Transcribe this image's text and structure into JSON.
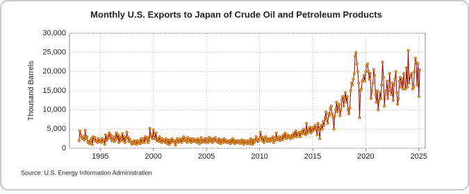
{
  "chart_data": {
    "type": "line",
    "title": "Monthly U.S. Exports to Japan of Crude Oil and Petroleum Products",
    "y_label": "Thousand Barrels",
    "source": "Source: U.S. Energy Information Administration",
    "xlim": [
      1992.1,
      2025.6
    ],
    "xticks": [
      1995,
      2000,
      2005,
      2010,
      2015,
      2020,
      2025
    ],
    "ylim": [
      0,
      30000
    ],
    "yticks": [
      0,
      {
        "value": 5000,
        "label": "5,000"
      },
      {
        "value": 10000,
        "label": "10,000"
      },
      {
        "value": 15000,
        "label": "15,000"
      },
      {
        "value": 20000,
        "label": "20,000"
      },
      {
        "value": 25000,
        "label": "25,000"
      },
      {
        "value": 30000,
        "label": "30,000"
      }
    ],
    "grid": true,
    "series": [
      {
        "color": "#990000",
        "marker_color": "#d9a520",
        "x": [
          1993,
          1993.08,
          1993.17,
          1993.25,
          1993.33,
          1993.42,
          1993.5,
          1993.58,
          1993.67,
          1993.75,
          1993.83,
          1993.92,
          1994,
          1994.08,
          1994.17,
          1994.25,
          1994.33,
          1994.42,
          1994.5,
          1994.58,
          1994.67,
          1994.75,
          1994.83,
          1994.92,
          1995,
          1995.08,
          1995.17,
          1995.25,
          1995.33,
          1995.42,
          1995.5,
          1995.58,
          1995.67,
          1995.75,
          1995.83,
          1995.92,
          1996,
          1996.08,
          1996.17,
          1996.25,
          1996.33,
          1996.42,
          1996.5,
          1996.58,
          1996.67,
          1996.75,
          1996.83,
          1996.92,
          1997,
          1997.08,
          1997.17,
          1997.25,
          1997.33,
          1997.42,
          1997.5,
          1997.58,
          1997.67,
          1997.75,
          1997.83,
          1997.92,
          1998,
          1998.08,
          1998.17,
          1998.25,
          1998.33,
          1998.42,
          1998.5,
          1998.58,
          1998.67,
          1998.75,
          1998.83,
          1998.92,
          1999,
          1999.08,
          1999.17,
          1999.25,
          1999.33,
          1999.42,
          1999.5,
          1999.58,
          1999.67,
          1999.75,
          1999.83,
          1999.92,
          2000,
          2000.08,
          2000.17,
          2000.25,
          2000.33,
          2000.42,
          2000.5,
          2000.58,
          2000.67,
          2000.75,
          2000.83,
          2000.92,
          2001,
          2001.08,
          2001.17,
          2001.25,
          2001.33,
          2001.42,
          2001.5,
          2001.58,
          2001.67,
          2001.75,
          2001.83,
          2001.92,
          2002,
          2002.08,
          2002.17,
          2002.25,
          2002.33,
          2002.42,
          2002.5,
          2002.58,
          2002.67,
          2002.75,
          2002.83,
          2002.92,
          2003,
          2003.08,
          2003.17,
          2003.25,
          2003.33,
          2003.42,
          2003.5,
          2003.58,
          2003.67,
          2003.75,
          2003.83,
          2003.92,
          2004,
          2004.08,
          2004.17,
          2004.25,
          2004.33,
          2004.42,
          2004.5,
          2004.58,
          2004.67,
          2004.75,
          2004.83,
          2004.92,
          2005,
          2005.08,
          2005.17,
          2005.25,
          2005.33,
          2005.42,
          2005.5,
          2005.58,
          2005.67,
          2005.75,
          2005.83,
          2005.92,
          2006,
          2006.08,
          2006.17,
          2006.25,
          2006.33,
          2006.42,
          2006.5,
          2006.58,
          2006.67,
          2006.75,
          2006.83,
          2006.92,
          2007,
          2007.08,
          2007.17,
          2007.25,
          2007.33,
          2007.42,
          2007.5,
          2007.58,
          2007.67,
          2007.75,
          2007.83,
          2007.92,
          2008,
          2008.08,
          2008.17,
          2008.25,
          2008.33,
          2008.42,
          2008.5,
          2008.58,
          2008.67,
          2008.75,
          2008.83,
          2008.92,
          2009,
          2009.08,
          2009.17,
          2009.25,
          2009.33,
          2009.42,
          2009.5,
          2009.58,
          2009.67,
          2009.75,
          2009.83,
          2009.92,
          2010,
          2010.08,
          2010.17,
          2010.25,
          2010.33,
          2010.42,
          2010.5,
          2010.58,
          2010.67,
          2010.75,
          2010.83,
          2010.92,
          2011,
          2011.08,
          2011.17,
          2011.25,
          2011.33,
          2011.42,
          2011.5,
          2011.58,
          2011.67,
          2011.75,
          2011.83,
          2011.92,
          2012,
          2012.08,
          2012.17,
          2012.25,
          2012.33,
          2012.42,
          2012.5,
          2012.58,
          2012.67,
          2012.75,
          2012.83,
          2012.92,
          2013,
          2013.08,
          2013.17,
          2013.25,
          2013.33,
          2013.42,
          2013.5,
          2013.58,
          2013.67,
          2013.75,
          2013.83,
          2013.92,
          2014,
          2014.08,
          2014.17,
          2014.25,
          2014.33,
          2014.42,
          2014.5,
          2014.58,
          2014.67,
          2014.75,
          2014.83,
          2014.92,
          2015,
          2015.08,
          2015.17,
          2015.25,
          2015.33,
          2015.42,
          2015.5,
          2015.58,
          2015.67,
          2015.75,
          2015.83,
          2015.92,
          2016,
          2016.08,
          2016.17,
          2016.25,
          2016.33,
          2016.42,
          2016.5,
          2016.58,
          2016.67,
          2016.75,
          2016.83,
          2016.92,
          2017,
          2017.08,
          2017.17,
          2017.25,
          2017.33,
          2017.42,
          2017.5,
          2017.58,
          2017.67,
          2017.75,
          2017.83,
          2017.92,
          2018,
          2018.08,
          2018.17,
          2018.25,
          2018.33,
          2018.42,
          2018.5,
          2018.58,
          2018.67,
          2018.75,
          2018.83,
          2018.92,
          2019,
          2019.08,
          2019.17,
          2019.25,
          2019.33,
          2019.42,
          2019.5,
          2019.58,
          2019.67,
          2019.75,
          2019.83,
          2019.92,
          2020,
          2020.08,
          2020.17,
          2020.25,
          2020.33,
          2020.42,
          2020.5,
          2020.58,
          2020.67,
          2020.75,
          2020.83,
          2020.92,
          2021,
          2021.08,
          2021.17,
          2021.25,
          2021.33,
          2021.42,
          2021.5,
          2021.58,
          2021.67,
          2021.75,
          2021.83,
          2021.92,
          2022,
          2022.08,
          2022.17,
          2022.25,
          2022.33,
          2022.42,
          2022.5,
          2022.58,
          2022.67,
          2022.75,
          2022.83,
          2022.92,
          2023,
          2023.08,
          2023.17,
          2023.25,
          2023.33,
          2023.42,
          2023.5,
          2023.58,
          2023.67,
          2023.75,
          2023.83,
          2023.92,
          2024,
          2024.08,
          2024.17,
          2024.25,
          2024.33,
          2024.42,
          2024.5,
          2024.58,
          2024.67,
          2024.75,
          2024.83,
          2024.92,
          2025,
          2025.08
        ],
        "values": [
          2000,
          4500,
          3500,
          2800,
          2500,
          3000,
          2200,
          4600,
          2500,
          3000,
          1500,
          1800,
          1200,
          2000,
          2500,
          1000,
          3000,
          2200,
          2800,
          1800,
          2000,
          1500,
          2500,
          1800,
          2000,
          1500,
          2500,
          1800,
          2200,
          1000,
          3500,
          2000,
          3000,
          2500,
          4000,
          2800,
          3500,
          2000,
          2500,
          3000,
          1800,
          2200,
          4000,
          2500,
          3500,
          1500,
          3000,
          2000,
          2500,
          3800,
          2000,
          3000,
          1500,
          2500,
          4200,
          3000,
          1800,
          2500,
          2000,
          1500,
          1000,
          1500,
          2000,
          1200,
          1800,
          1000,
          2000,
          1500,
          1800,
          1200,
          2500,
          1500,
          1800,
          2500,
          1500,
          3000,
          2200,
          2800,
          1500,
          2000,
          5200,
          3000,
          3500,
          2500,
          4800,
          3500,
          2500,
          4000,
          2000,
          2500,
          1800,
          3000,
          2200,
          1500,
          2500,
          2000,
          2000,
          1500,
          2500,
          1800,
          1200,
          2200,
          1000,
          2000,
          1500,
          2500,
          1800,
          2000,
          1500,
          800,
          2000,
          2500,
          1500,
          2000,
          1800,
          2500,
          1500,
          2200,
          3000,
          2000,
          2500,
          2000,
          1500,
          2800,
          2200,
          1800,
          2500,
          1500,
          2000,
          2500,
          1800,
          2200,
          2000,
          1500,
          2500,
          1800,
          1200,
          2200,
          2800,
          1500,
          2000,
          1800,
          2500,
          1500,
          2500,
          2000,
          1500,
          2800,
          2200,
          1800,
          2500,
          1500,
          2000,
          2500,
          2800,
          1800,
          2000,
          1500,
          2500,
          1800,
          1200,
          2200,
          2000,
          1500,
          2500,
          1800,
          2000,
          1500,
          1500,
          2000,
          1800,
          1200,
          2200,
          1500,
          2500,
          1800,
          1200,
          2000,
          1500,
          1800,
          2000,
          1500,
          1200,
          1800,
          2200,
          1500,
          1000,
          2000,
          1500,
          1800,
          1200,
          2000,
          1500,
          1200,
          2500,
          1800,
          1000,
          2200,
          1500,
          2000,
          3000,
          2500,
          1800,
          2000,
          2500,
          4200,
          3000,
          2000,
          2800,
          1500,
          2200,
          3000,
          2500,
          1800,
          2000,
          2500,
          1800,
          2500,
          2200,
          3000,
          1500,
          2000,
          2800,
          4000,
          2200,
          2500,
          3000,
          2000,
          2500,
          3000,
          2200,
          3500,
          2800,
          4000,
          2500,
          3000,
          3500,
          2800,
          3200,
          2500,
          3000,
          3500,
          2800,
          4000,
          3200,
          4500,
          3000,
          3800,
          3500,
          4200,
          3000,
          4000,
          4500,
          3800,
          5000,
          4200,
          3500,
          6500,
          4000,
          5000,
          4500,
          5500,
          4000,
          5200,
          4500,
          5500,
          4800,
          6000,
          5200,
          3500,
          6500,
          5000,
          2500,
          5500,
          6000,
          5000,
          7000,
          6000,
          8000,
          9500,
          7500,
          6500,
          9000,
          8500,
          10500,
          11000,
          9000,
          8000,
          5000,
          8500,
          10000,
          12000,
          9500,
          11000,
          11500,
          8500,
          10000,
          12500,
          13500,
          11000,
          13000,
          14500,
          12000,
          13500,
          10000,
          9000,
          10500,
          15000,
          17000,
          16500,
          18000,
          19500,
          24000,
          25000,
          22000,
          20000,
          17000,
          8000,
          15000,
          15500,
          17500,
          18000,
          19000,
          17500,
          20000,
          21500,
          22000,
          20000,
          18000,
          19500,
          13000,
          15000,
          17000,
          20500,
          19000,
          14000,
          12000,
          15000,
          10000,
          12500,
          14500,
          13000,
          16500,
          22500,
          18500,
          11000,
          14000,
          15000,
          17500,
          13000,
          16000,
          19500,
          15000,
          14000,
          17000,
          12500,
          16500,
          18000,
          20000,
          14500,
          11500,
          13000,
          17500,
          18500,
          16000,
          18000,
          15500,
          19500,
          17000,
          15500,
          21000,
          16000,
          25500,
          17000,
          19000,
          18500,
          19500,
          15500,
          16000,
          20000,
          23500,
          22500,
          16500,
          22000,
          13500,
          20500
        ]
      }
    ]
  }
}
